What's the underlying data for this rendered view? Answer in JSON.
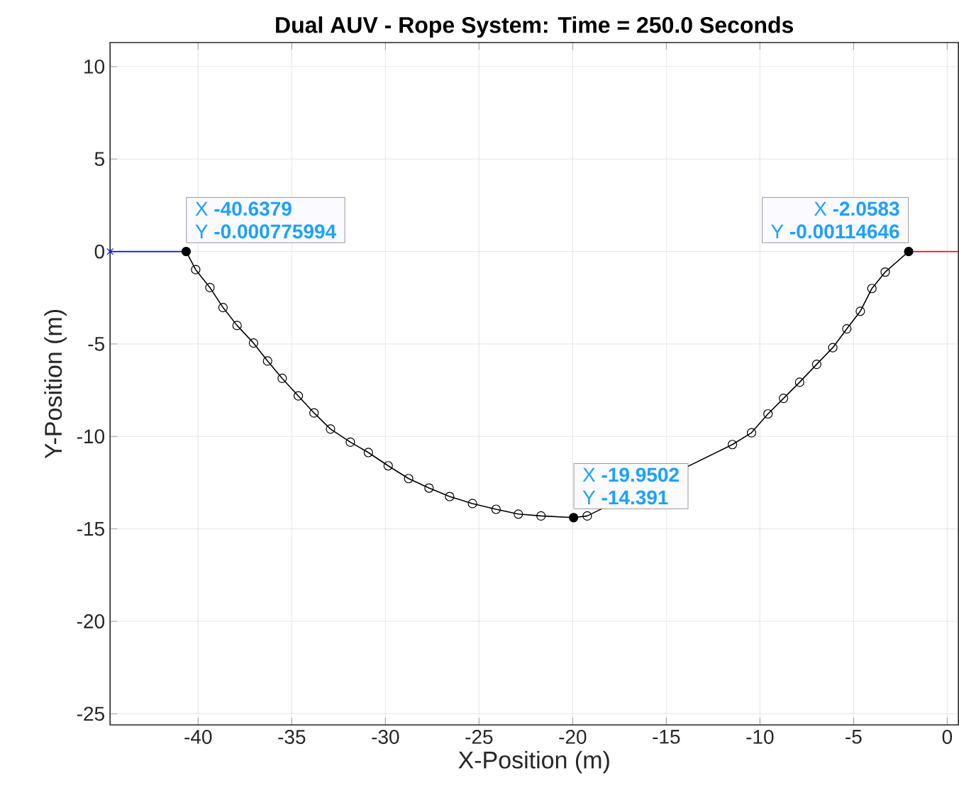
{
  "chart_data": {
    "type": "line",
    "title": "Dual AUV - Rope System:  Time = 250.0 Seconds",
    "xlabel": "X-Position (m)",
    "ylabel": "Y-Position (m)",
    "xlim": [
      -44.7,
      0.6
    ],
    "ylim": [
      -25.6,
      11.3
    ],
    "xticks": [
      -40,
      -35,
      -30,
      -25,
      -20,
      -15,
      -10,
      -5,
      0
    ],
    "yticks": [
      -25,
      -20,
      -15,
      -10,
      -5,
      0,
      5,
      10
    ],
    "grid": true,
    "series": [
      {
        "color": "#0000ff",
        "marker": "cross",
        "x": [
          -44.7,
          -40.6379
        ],
        "values": [
          0,
          0
        ]
      },
      {
        "color": "#000000",
        "marker": "circle",
        "x": [
          -40.6379,
          -40.13,
          -39.37,
          -38.67,
          -37.92,
          -37.04,
          -36.29,
          -35.51,
          -34.65,
          -33.81,
          -32.93,
          -31.87,
          -30.91,
          -29.85,
          -28.76,
          -27.67,
          -26.57,
          -25.35,
          -24.09,
          -22.9,
          -21.69,
          -19.9502,
          -19.22,
          -11.47,
          -10.45,
          -9.57,
          -8.74,
          -7.88,
          -6.97,
          -6.11,
          -5.36,
          -4.64,
          -4.02,
          -3.31,
          -2.0583
        ],
        "values": [
          0,
          -0.98,
          -1.95,
          -3.03,
          -4.0,
          -4.95,
          -5.92,
          -6.86,
          -7.81,
          -8.73,
          -9.6,
          -10.31,
          -10.87,
          -11.59,
          -12.28,
          -12.79,
          -13.25,
          -13.63,
          -13.94,
          -14.2,
          -14.3,
          -14.391,
          -14.3,
          -10.44,
          -9.8,
          -8.78,
          -7.94,
          -7.07,
          -6.1,
          -5.2,
          -4.18,
          -3.23,
          -2.0,
          -1.11,
          0
        ]
      },
      {
        "color": "#ff0000",
        "x": [
          -2.0583,
          0.6
        ],
        "values": [
          0,
          0
        ]
      }
    ],
    "annotations": [
      {
        "text": "X **-40.6379**",
        "x": -40.6379,
        "y": -0.000775994
      },
      {
        "text": "Y **-0.000775994**",
        "x": -40.6379,
        "y": -0.000775994
      },
      {
        "text": "X **-2.0583**",
        "x": -2.0583,
        "y": -0.00114646
      },
      {
        "text": "Y **-0.00114646**",
        "x": -2.0583,
        "y": -0.00114646
      },
      {
        "text": "X **-19.9502**",
        "x": -19.9502,
        "y": -14.391
      },
      {
        "text": "Y **-14.391**",
        "x": -19.9502,
        "y": -14.391
      }
    ]
  }
}
